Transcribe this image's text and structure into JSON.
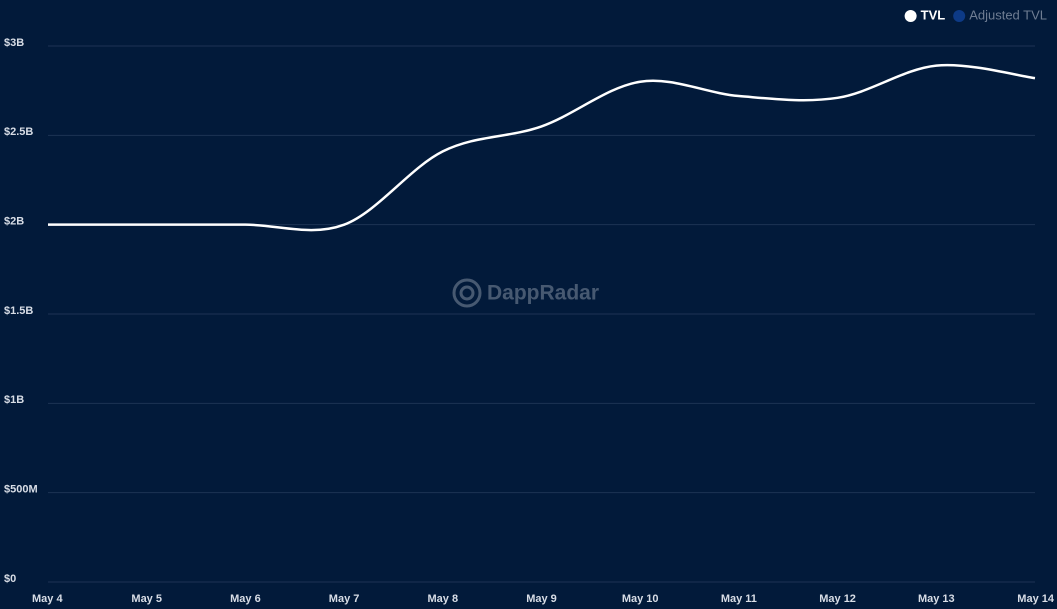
{
  "chart_data": {
    "type": "line",
    "watermark": "DappRadar",
    "categories": [
      "May 4",
      "May 5",
      "May 6",
      "May 7",
      "May 8",
      "May 9",
      "May 10",
      "May 11",
      "May 12",
      "May 13",
      "May 14"
    ],
    "series": [
      {
        "name": "TVL",
        "color": "#ffffff",
        "values": [
          2000000000,
          2000000000,
          2000000000,
          2000000000,
          2410000000,
          2550000000,
          2800000000,
          2720000000,
          2710000000,
          2890000000,
          2820000000
        ]
      }
    ],
    "hidden_series": [
      {
        "name": "Adjusted TVL",
        "color": "#0d3a86"
      }
    ],
    "ylim": [
      0,
      3000000000
    ],
    "yticks": [
      {
        "value": 0,
        "label": "$0"
      },
      {
        "value": 500000000,
        "label": "$500M"
      },
      {
        "value": 1000000000,
        "label": "$1B"
      },
      {
        "value": 1500000000,
        "label": "$1.5B"
      },
      {
        "value": 2000000000,
        "label": "$2B"
      },
      {
        "value": 2500000000,
        "label": "$2.5B"
      },
      {
        "value": 3000000000,
        "label": "$3B"
      }
    ],
    "grid": true,
    "legend": "top-right"
  }
}
